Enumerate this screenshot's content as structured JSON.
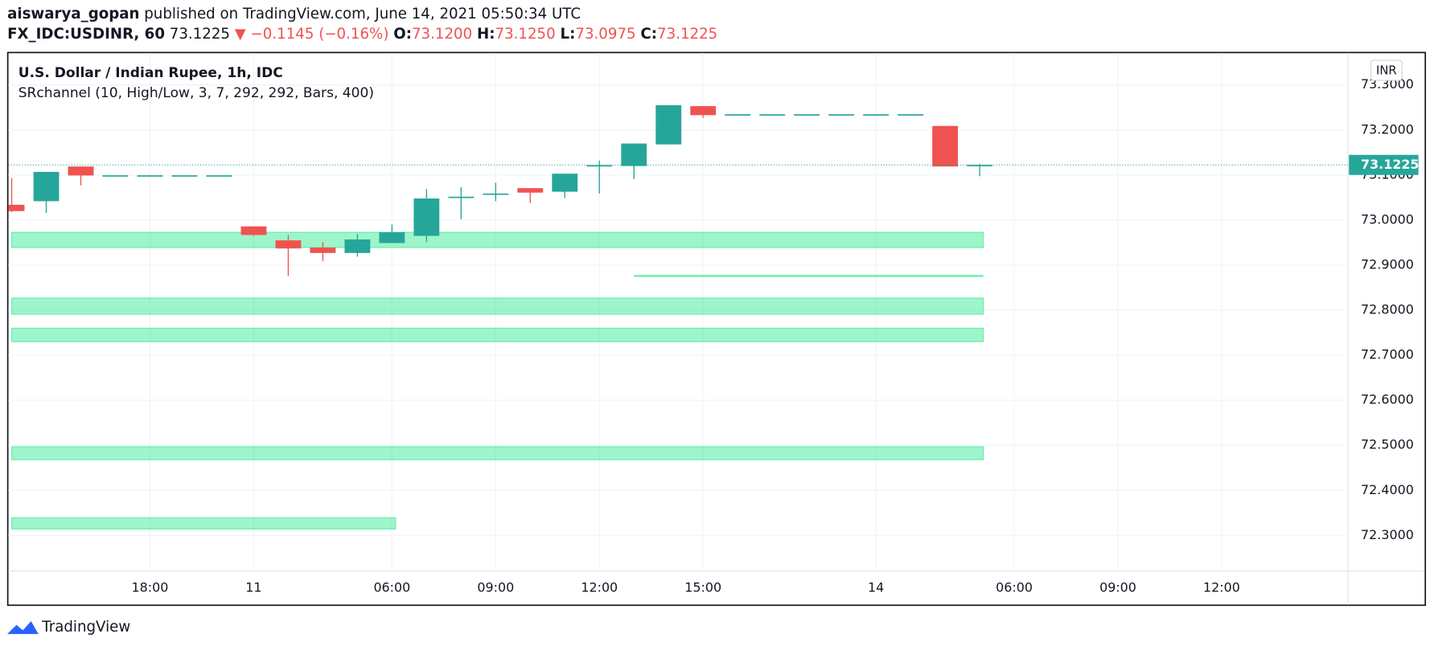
{
  "header": {
    "user": "aiswarya_gopan",
    "published": "published on TradingView.com, June 14, 2021 05:50:34 UTC",
    "symbol": "FX_IDC:USDINR, 60",
    "price": "73.1225",
    "change": "▼ −0.1145 (−0.16%)",
    "open_label": "O:",
    "open": "73.1200",
    "high_label": "H:",
    "high": "73.1250",
    "low_label": "L:",
    "low": "73.0975",
    "close_label": "C:",
    "close": "73.1225"
  },
  "chart_data": {
    "type": "candlestick",
    "title": "U.S. Dollar / Indian Rupee, 1h, IDC",
    "indicator": "SRchannel (10, High/Low, 3, 7, 292, 292, Bars, 400)",
    "currency": "INR",
    "categories": [
      null,
      null,
      null,
      null,
      "18:00",
      null,
      null,
      "11",
      null,
      null,
      null,
      "06:00",
      null,
      null,
      "09:00",
      null,
      null,
      "12:00",
      null,
      null,
      "15:00",
      null,
      null,
      null,
      null,
      "14",
      null,
      null,
      null,
      "06:00",
      null,
      null,
      "09:00",
      null,
      null,
      "12:00",
      null,
      null,
      null
    ],
    "open": [
      73.034,
      73.042,
      73.119,
      73.0995,
      73.0995,
      73.0995,
      73.0995,
      72.986,
      72.955,
      72.939,
      72.927,
      72.949,
      72.965,
      73.05,
      73.057,
      73.071,
      73.063,
      73.12,
      73.12,
      73.168,
      73.253,
      73.235,
      73.235,
      73.235,
      73.235,
      73.235,
      73.235,
      73.209,
      73.12,
      null,
      null,
      null,
      null,
      null,
      null,
      null,
      null,
      null,
      null
    ],
    "high": [
      73.093,
      73.107,
      73.119,
      73.0995,
      73.0995,
      73.0995,
      73.0995,
      72.986,
      72.967,
      72.951,
      72.969,
      72.99,
      73.069,
      73.073,
      73.083,
      73.071,
      73.103,
      73.132,
      73.17,
      73.255,
      73.253,
      73.235,
      73.235,
      73.235,
      73.235,
      73.235,
      73.235,
      73.209,
      73.125,
      null,
      null,
      null,
      null,
      null,
      null,
      null,
      null,
      null,
      null
    ],
    "low": [
      73.018,
      73.016,
      73.077,
      73.0995,
      73.0995,
      73.0995,
      73.0995,
      72.965,
      72.876,
      72.909,
      72.919,
      72.949,
      72.951,
      73.002,
      73.042,
      73.038,
      73.049,
      73.059,
      73.091,
      73.168,
      73.227,
      73.235,
      73.235,
      73.235,
      73.235,
      73.235,
      73.235,
      73.119,
      73.0975,
      null,
      null,
      null,
      null,
      null,
      null,
      null,
      null,
      null,
      null
    ],
    "close": [
      73.02,
      73.107,
      73.099,
      73.0995,
      73.0995,
      73.0995,
      73.0995,
      72.967,
      72.937,
      72.927,
      72.957,
      72.973,
      73.048,
      73.052,
      73.059,
      73.061,
      73.103,
      73.122,
      73.17,
      73.255,
      73.233,
      73.235,
      73.235,
      73.235,
      73.235,
      73.235,
      73.235,
      73.119,
      73.1225,
      null,
      null,
      null,
      null,
      null,
      null,
      null,
      null,
      null,
      null
    ],
    "up_color": "#26a69a",
    "down_color": "#ef5350",
    "zone_color": "#00e676",
    "sr_zones": [
      {
        "low": 72.939,
        "high": 72.973,
        "from": 0,
        "to": 28
      },
      {
        "low": 72.791,
        "high": 72.827,
        "from": 0,
        "to": 28
      },
      {
        "low": 72.73,
        "high": 72.76,
        "from": 0,
        "to": 28
      },
      {
        "low": 72.468,
        "high": 72.497,
        "from": 0,
        "to": 28
      },
      {
        "low": 72.314,
        "high": 72.339,
        "from": 0,
        "to": 11
      },
      {
        "low": 72.876,
        "high": 72.876,
        "from": 18,
        "to": 28
      }
    ],
    "ylim": [
      72.221,
      73.371
    ],
    "yticks": [
      {
        "value": 72.3,
        "label": "72.3000"
      },
      {
        "value": 72.4,
        "label": "72.4000"
      },
      {
        "value": 72.5,
        "label": "72.5000"
      },
      {
        "value": 72.6,
        "label": "72.6000"
      },
      {
        "value": 72.7,
        "label": "72.7000"
      },
      {
        "value": 72.8,
        "label": "72.8000"
      },
      {
        "value": 72.9,
        "label": "72.9000"
      },
      {
        "value": 73.0,
        "label": "73.0000"
      },
      {
        "value": 73.1,
        "label": "73.1000"
      },
      {
        "value": 73.2,
        "label": "73.2000"
      },
      {
        "value": 73.3,
        "label": "73.3000"
      }
    ],
    "grid": true
  },
  "footer": {
    "brand": "TradingView"
  }
}
